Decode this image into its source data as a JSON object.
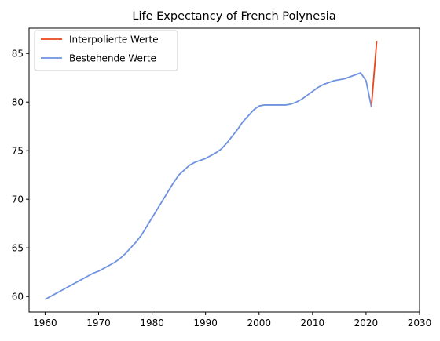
{
  "chart_data": {
    "type": "line",
    "title": "Life Expectancy of French Polynesia",
    "xlabel": "",
    "ylabel": "",
    "xlim": [
      1957,
      2030
    ],
    "ylim": [
      58.4,
      87.6
    ],
    "xticks": [
      1960,
      1970,
      1980,
      1990,
      2000,
      2010,
      2020,
      2030
    ],
    "yticks": [
      60,
      65,
      70,
      75,
      80,
      85
    ],
    "grid": false,
    "legend_position": "top-left",
    "series": [
      {
        "name": "Interpolierte Werte",
        "color": "#e8461b",
        "x": [
          2021,
          2022
        ],
        "y": [
          79.5,
          86.3
        ]
      },
      {
        "name": "Bestehende Werte",
        "color": "#6f93e0",
        "x": [
          1960,
          1961,
          1962,
          1963,
          1964,
          1965,
          1966,
          1967,
          1968,
          1969,
          1970,
          1971,
          1972,
          1973,
          1974,
          1975,
          1976,
          1977,
          1978,
          1979,
          1980,
          1981,
          1982,
          1983,
          1984,
          1985,
          1986,
          1987,
          1988,
          1989,
          1990,
          1991,
          1992,
          1993,
          1994,
          1995,
          1996,
          1997,
          1998,
          1999,
          2000,
          2001,
          2002,
          2003,
          2004,
          2005,
          2006,
          2007,
          2008,
          2009,
          2010,
          2011,
          2012,
          2013,
          2014,
          2015,
          2016,
          2017,
          2018,
          2019,
          2020,
          2021
        ],
        "y": [
          59.7,
          60.0,
          60.3,
          60.6,
          60.9,
          61.2,
          61.5,
          61.8,
          62.1,
          62.4,
          62.6,
          62.9,
          63.2,
          63.5,
          63.9,
          64.4,
          65.0,
          65.6,
          66.3,
          67.2,
          68.1,
          69.0,
          69.9,
          70.8,
          71.7,
          72.5,
          73.0,
          73.5,
          73.8,
          74.0,
          74.2,
          74.5,
          74.8,
          75.2,
          75.8,
          76.5,
          77.2,
          78.0,
          78.6,
          79.2,
          79.6,
          79.7,
          79.7,
          79.7,
          79.7,
          79.7,
          79.8,
          80.0,
          80.3,
          80.7,
          81.1,
          81.5,
          81.8,
          82.0,
          82.2,
          82.3,
          82.4,
          82.6,
          82.8,
          83.0,
          82.2,
          79.5
        ]
      }
    ]
  }
}
